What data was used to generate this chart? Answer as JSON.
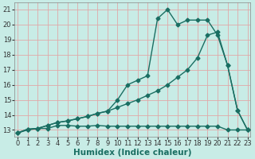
{
  "xlabel": "Humidex (Indice chaleur)",
  "ylabel_ticks": [
    13,
    14,
    15,
    16,
    17,
    18,
    19,
    20,
    21
  ],
  "xlabel_ticks": [
    0,
    1,
    2,
    3,
    4,
    5,
    6,
    7,
    8,
    9,
    10,
    11,
    12,
    13,
    14,
    15,
    16,
    17,
    18,
    19,
    20,
    21,
    22,
    23
  ],
  "xlim": [
    -0.3,
    23.3
  ],
  "ylim": [
    12.55,
    21.45
  ],
  "bg_color": "#c8ece6",
  "grid_color": "#e0a8a8",
  "line_color": "#1a6e62",
  "line_flat_x": [
    0,
    1,
    2,
    3,
    4,
    5,
    6,
    7,
    8,
    9,
    10,
    11,
    12,
    13,
    14,
    15,
    16,
    17,
    18,
    19,
    20,
    21,
    22,
    23
  ],
  "line_flat_y": [
    12.8,
    13.0,
    13.1,
    13.1,
    13.3,
    13.3,
    13.25,
    13.25,
    13.3,
    13.25,
    13.25,
    13.25,
    13.25,
    13.25,
    13.25,
    13.25,
    13.25,
    13.25,
    13.25,
    13.25,
    13.25,
    13.0,
    13.0,
    13.0
  ],
  "line_diag_x": [
    0,
    1,
    2,
    3,
    4,
    5,
    6,
    7,
    8,
    9,
    10,
    11,
    12,
    13,
    14,
    15,
    16,
    17,
    18,
    19,
    20,
    21,
    22,
    23
  ],
  "line_diag_y": [
    12.8,
    13.05,
    13.1,
    13.3,
    13.5,
    13.6,
    13.75,
    13.9,
    14.1,
    14.25,
    14.5,
    14.75,
    15.0,
    15.3,
    15.6,
    16.0,
    16.5,
    17.0,
    17.8,
    19.3,
    19.5,
    17.3,
    14.3,
    13.0
  ],
  "line_jagged_x": [
    0,
    1,
    2,
    3,
    4,
    5,
    6,
    7,
    8,
    9,
    10,
    11,
    12,
    13,
    14,
    15,
    16,
    17,
    18,
    19,
    20,
    21,
    22,
    23
  ],
  "line_jagged_y": [
    12.8,
    13.05,
    13.1,
    13.3,
    13.5,
    13.6,
    13.75,
    13.9,
    14.1,
    14.25,
    15.0,
    16.0,
    16.3,
    16.6,
    20.4,
    21.0,
    20.0,
    20.3,
    20.3,
    20.3,
    19.3,
    17.3,
    14.3,
    13.0
  ],
  "markersize": 2.5,
  "linewidth": 1.0,
  "tick_fontsize": 6,
  "label_fontsize": 7.5
}
